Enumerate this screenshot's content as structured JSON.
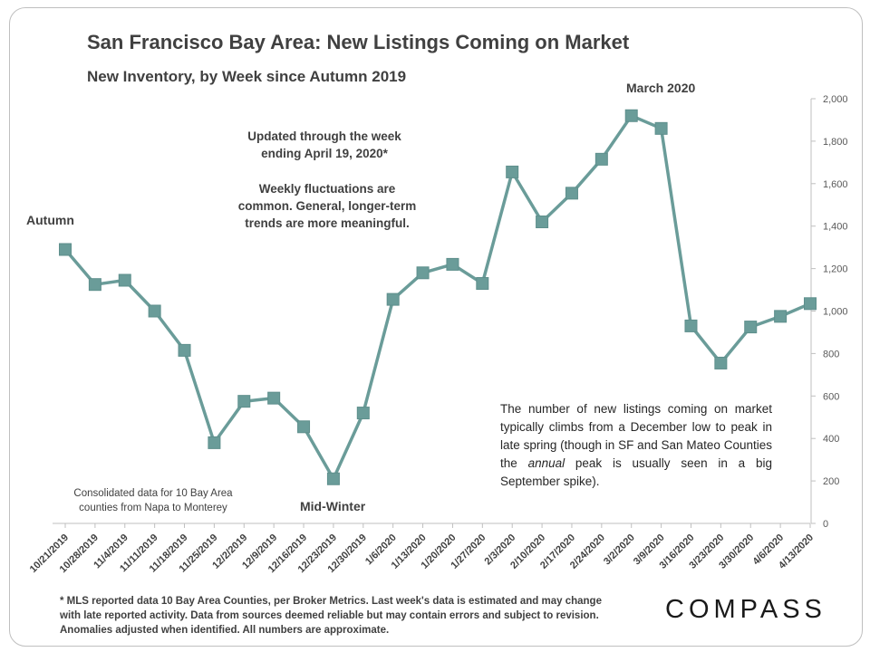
{
  "header": {
    "title": "San Francisco Bay Area: New Listings Coming on Market",
    "subtitle": "New Inventory, by Week since Autumn 2019"
  },
  "notes": {
    "updated_line1": "Updated through the week",
    "updated_line2": "ending April 19, 2020*",
    "fluct_line1": "Weekly fluctuations are",
    "fluct_line2": "common. General, longer-term",
    "fluct_line3": "trends are more meaningful.",
    "consolidated_line1": "Consolidated data for 10 Bay Area",
    "consolidated_line2": "counties from Napa to Monterey",
    "description_pre": "The number of new listings coming on market typically climbs from a December low to peak in late spring (though in SF and San Mateo Counties the ",
    "description_em": "annual",
    "description_post": " peak is usually seen in a big September spike)."
  },
  "annotations": {
    "autumn": "Autumn",
    "midwinter": "Mid-Winter",
    "march": "March 2020"
  },
  "footer": {
    "line1": "* MLS reported data 10 Bay Area Counties, per Broker Metrics. Last week's data is estimated and may change",
    "line2": "with late reported activity. Data from sources deemed reliable but may contain errors and subject to revision.",
    "line3": "Anomalies adjusted when identified. All numbers are approximate."
  },
  "logo": {
    "text": "COMPASS"
  },
  "chart_data": {
    "type": "line",
    "title": "San Francisco Bay Area: New Listings Coming on Market",
    "subtitle": "New Inventory, by Week since Autumn 2019",
    "categories": [
      "10/21/2019",
      "10/28/2019",
      "11/4/2019",
      "11/11/2019",
      "11/18/2019",
      "11/25/2019",
      "12/2/2019",
      "12/9/2019",
      "12/16/2019",
      "12/23/2019",
      "12/30/2019",
      "1/6/2020",
      "1/13/2020",
      "1/20/2020",
      "1/27/2020",
      "2/3/2020",
      "2/10/2020",
      "2/17/2020",
      "2/24/2020",
      "3/2/2020",
      "3/9/2020",
      "3/16/2020",
      "3/23/2020",
      "3/30/2020",
      "4/6/2020",
      "4/13/2020"
    ],
    "values": [
      1290,
      1125,
      1145,
      1000,
      815,
      380,
      575,
      590,
      455,
      210,
      520,
      1055,
      1180,
      1220,
      1130,
      1655,
      1420,
      1555,
      1715,
      1920,
      1860,
      930,
      755,
      925,
      975,
      1035
    ],
    "ylim": [
      0,
      2000
    ],
    "yticks": [
      0,
      200,
      400,
      600,
      800,
      1000,
      1200,
      1400,
      1600,
      1800,
      2000
    ],
    "ytick_labels": [
      "0",
      "200",
      "400",
      "600",
      "800",
      "1,000",
      "1,200",
      "1,400",
      "1,600",
      "1,800",
      "2,000"
    ],
    "y_axis_side": "right",
    "grid": false,
    "line_color": "#6a9c99",
    "marker_color": "#6a9c99",
    "marker": "square"
  }
}
